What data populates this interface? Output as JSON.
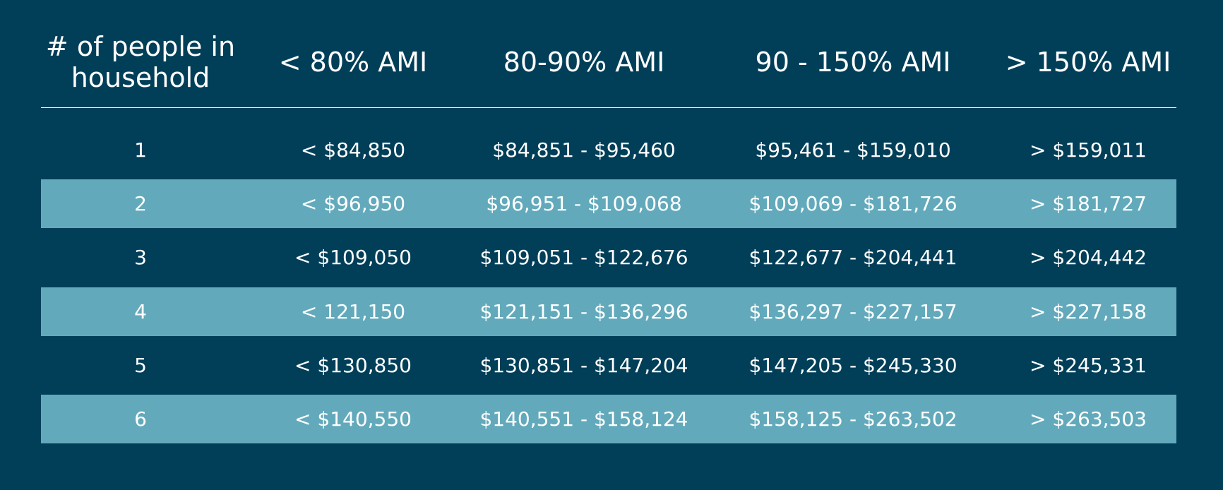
{
  "table": {
    "columns": [
      "# of people in household",
      "< 80% AMI",
      "80-90% AMI",
      "90 - 150% AMI",
      "> 150% AMI"
    ],
    "rows": [
      [
        "1",
        "< $84,850",
        "$84,851 - $95,460",
        "$95,461 - $159,010",
        "> $159,011"
      ],
      [
        "2",
        "< $96,950",
        "$96,951 - $109,068",
        "$109,069 - $181,726",
        "> $181,727"
      ],
      [
        "3",
        "< $109,050",
        "$109,051 - $122,676",
        "$122,677 - $204,441",
        "> $204,442"
      ],
      [
        "4",
        "< 121,150",
        "$121,151 - $136,296",
        "$136,297 - $227,157",
        "> $227,158"
      ],
      [
        "5",
        "< $130,850",
        "$130,851 - $147,204",
        "$147,205 - $245,330",
        "> $245,331"
      ],
      [
        "6",
        "< $140,550",
        "$140,551 - $158,124",
        "$158,125 - $263,502",
        "> $263,503"
      ]
    ]
  }
}
